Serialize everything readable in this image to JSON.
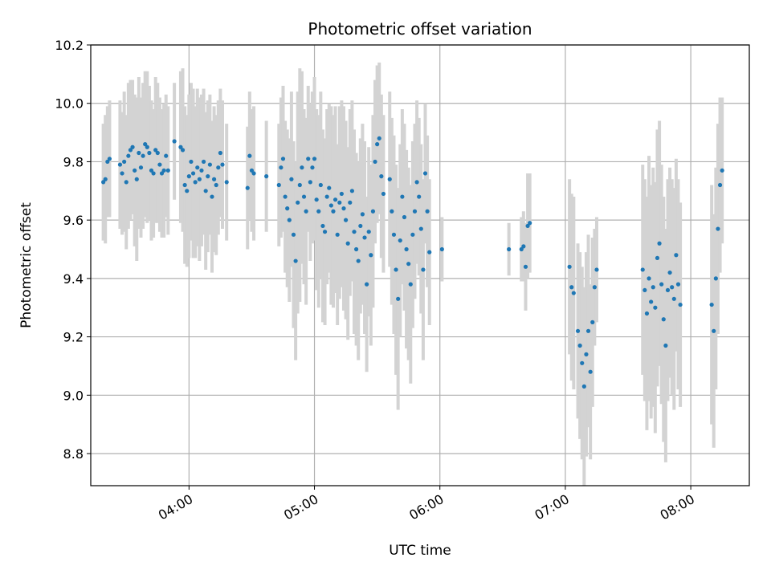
{
  "chart_data": {
    "type": "scatter",
    "title": "Photometric offset variation",
    "xlabel": "UTC time",
    "ylabel": "Photometric offset",
    "xlim": [
      "03:13",
      "08:28"
    ],
    "ylim": [
      8.69,
      10.2
    ],
    "x_ticks": [
      "04:00",
      "05:00",
      "06:00",
      "07:00",
      "08:00"
    ],
    "y_ticks": [
      "8.8",
      "9.0",
      "9.2",
      "9.4",
      "9.6",
      "9.8",
      "10.0",
      "10.2"
    ],
    "grid": true,
    "colors": {
      "points": "#1f77b4",
      "errorbars": "#d3d3d3",
      "grid": "#b0b0b0"
    },
    "series": [
      {
        "points": [
          [
            "03:19",
            9.73,
            0.2
          ],
          [
            "03:20",
            9.74,
            0.22
          ],
          [
            "03:21",
            9.8,
            0.19
          ],
          [
            "03:22",
            9.81,
            0.2
          ],
          [
            "03:27",
            9.79,
            0.22
          ],
          [
            "03:28",
            9.76,
            0.21
          ],
          [
            "03:29",
            9.8,
            0.24
          ],
          [
            "03:30",
            9.73,
            0.23
          ],
          [
            "03:31",
            9.82,
            0.25
          ],
          [
            "03:32",
            9.84,
            0.24
          ],
          [
            "03:33",
            9.85,
            0.23
          ],
          [
            "03:34",
            9.77,
            0.26
          ],
          [
            "03:35",
            9.74,
            0.28
          ],
          [
            "03:36",
            9.83,
            0.26
          ],
          [
            "03:37",
            9.78,
            0.24
          ],
          [
            "03:38",
            9.82,
            0.25
          ],
          [
            "03:39",
            9.86,
            0.25
          ],
          [
            "03:40",
            9.85,
            0.26
          ],
          [
            "03:41",
            9.83,
            0.23
          ],
          [
            "03:42",
            9.77,
            0.24
          ],
          [
            "03:43",
            9.76,
            0.22
          ],
          [
            "03:44",
            9.84,
            0.25
          ],
          [
            "03:45",
            9.83,
            0.24
          ],
          [
            "03:46",
            9.79,
            0.23
          ],
          [
            "03:47",
            9.76,
            0.22
          ],
          [
            "03:48",
            9.77,
            0.23
          ],
          [
            "03:49",
            9.82,
            0.21
          ],
          [
            "03:50",
            9.77,
            0.22
          ],
          [
            "03:53",
            9.87,
            0.2
          ],
          [
            "03:56",
            9.85,
            0.26
          ],
          [
            "03:57",
            9.84,
            0.28
          ],
          [
            "03:58",
            9.72,
            0.27
          ],
          [
            "03:59",
            9.7,
            0.26
          ],
          [
            "04:00",
            9.75,
            0.28
          ],
          [
            "04:01",
            9.8,
            0.27
          ],
          [
            "04:02",
            9.76,
            0.29
          ],
          [
            "04:03",
            9.73,
            0.26
          ],
          [
            "04:04",
            9.78,
            0.27
          ],
          [
            "04:05",
            9.74,
            0.28
          ],
          [
            "04:06",
            9.77,
            0.26
          ],
          [
            "04:07",
            9.8,
            0.25
          ],
          [
            "04:08",
            9.7,
            0.27
          ],
          [
            "04:09",
            9.75,
            0.26
          ],
          [
            "04:10",
            9.79,
            0.24
          ],
          [
            "04:11",
            9.68,
            0.26
          ],
          [
            "04:12",
            9.74,
            0.25
          ],
          [
            "04:13",
            9.72,
            0.24
          ],
          [
            "04:14",
            9.78,
            0.23
          ],
          [
            "04:15",
            9.83,
            0.22
          ],
          [
            "04:16",
            9.79,
            0.22
          ],
          [
            "04:18",
            9.73,
            0.2
          ],
          [
            "04:28",
            9.71,
            0.21
          ],
          [
            "04:29",
            9.82,
            0.22
          ],
          [
            "04:30",
            9.77,
            0.21
          ],
          [
            "04:31",
            9.76,
            0.23
          ],
          [
            "04:37",
            9.75,
            0.19
          ],
          [
            "04:43",
            9.72,
            0.21
          ],
          [
            "04:44",
            9.78,
            0.24
          ],
          [
            "04:45",
            9.81,
            0.25
          ],
          [
            "04:46",
            9.68,
            0.26
          ],
          [
            "04:47",
            9.64,
            0.27
          ],
          [
            "04:48",
            9.6,
            0.28
          ],
          [
            "04:49",
            9.74,
            0.3
          ],
          [
            "04:50",
            9.55,
            0.32
          ],
          [
            "04:51",
            9.46,
            0.34
          ],
          [
            "04:52",
            9.66,
            0.38
          ],
          [
            "04:53",
            9.72,
            0.4
          ],
          [
            "04:54",
            9.78,
            0.33
          ],
          [
            "04:55",
            9.68,
            0.3
          ],
          [
            "04:56",
            9.63,
            0.32
          ],
          [
            "04:57",
            9.81,
            0.25
          ],
          [
            "04:58",
            9.73,
            0.27
          ],
          [
            "04:59",
            9.78,
            0.26
          ],
          [
            "05:00",
            9.81,
            0.28
          ],
          [
            "05:01",
            9.67,
            0.31
          ],
          [
            "05:02",
            9.63,
            0.33
          ],
          [
            "05:03",
            9.72,
            0.32
          ],
          [
            "05:04",
            9.58,
            0.33
          ],
          [
            "05:05",
            9.56,
            0.32
          ],
          [
            "05:06",
            9.68,
            0.3
          ],
          [
            "05:07",
            9.71,
            0.29
          ],
          [
            "05:08",
            9.65,
            0.34
          ],
          [
            "05:09",
            9.63,
            0.33
          ],
          [
            "05:10",
            9.67,
            0.32
          ],
          [
            "05:11",
            9.55,
            0.31
          ],
          [
            "05:12",
            9.66,
            0.33
          ],
          [
            "05:13",
            9.69,
            0.32
          ],
          [
            "05:14",
            9.64,
            0.35
          ],
          [
            "05:15",
            9.6,
            0.34
          ],
          [
            "05:16",
            9.52,
            0.33
          ],
          [
            "05:17",
            9.66,
            0.32
          ],
          [
            "05:18",
            9.7,
            0.31
          ],
          [
            "05:19",
            9.56,
            0.35
          ],
          [
            "05:20",
            9.5,
            0.33
          ],
          [
            "05:21",
            9.46,
            0.34
          ],
          [
            "05:22",
            9.58,
            0.3
          ],
          [
            "05:23",
            9.62,
            0.31
          ],
          [
            "05:24",
            9.54,
            0.33
          ],
          [
            "05:25",
            9.38,
            0.3
          ],
          [
            "05:26",
            9.56,
            0.29
          ],
          [
            "05:27",
            9.48,
            0.31
          ],
          [
            "05:28",
            9.63,
            0.33
          ],
          [
            "05:29",
            9.8,
            0.28
          ],
          [
            "05:30",
            9.86,
            0.27
          ],
          [
            "05:31",
            9.88,
            0.26
          ],
          [
            "05:32",
            9.75,
            0.28
          ],
          [
            "05:33",
            9.69,
            0.27
          ],
          [
            "05:36",
            9.74,
            0.3
          ],
          [
            "05:37",
            9.63,
            0.32
          ],
          [
            "05:38",
            9.55,
            0.34
          ],
          [
            "05:39",
            9.43,
            0.36
          ],
          [
            "05:40",
            9.33,
            0.38
          ],
          [
            "05:41",
            9.53,
            0.33
          ],
          [
            "05:42",
            9.68,
            0.3
          ],
          [
            "05:43",
            9.61,
            0.32
          ],
          [
            "05:44",
            9.5,
            0.34
          ],
          [
            "05:45",
            9.45,
            0.33
          ],
          [
            "05:46",
            9.38,
            0.34
          ],
          [
            "05:47",
            9.55,
            0.32
          ],
          [
            "05:48",
            9.63,
            0.3
          ],
          [
            "05:49",
            9.73,
            0.28
          ],
          [
            "05:50",
            9.68,
            0.27
          ],
          [
            "05:51",
            9.57,
            0.29
          ],
          [
            "05:52",
            9.43,
            0.31
          ],
          [
            "05:53",
            9.76,
            0.24
          ],
          [
            "05:54",
            9.63,
            0.26
          ],
          [
            "05:55",
            9.49,
            0.25
          ],
          [
            "06:01",
            9.5,
            0.11
          ],
          [
            "06:33",
            9.5,
            0.09
          ],
          [
            "06:39",
            9.5,
            0.11
          ],
          [
            "06:40",
            9.51,
            0.12
          ],
          [
            "06:41",
            9.44,
            0.15
          ],
          [
            "06:42",
            9.58,
            0.18
          ],
          [
            "06:43",
            9.59,
            0.17
          ],
          [
            "07:02",
            9.44,
            0.3
          ],
          [
            "07:03",
            9.37,
            0.32
          ],
          [
            "07:04",
            9.35,
            0.33
          ],
          [
            "07:06",
            9.22,
            0.3
          ],
          [
            "07:07",
            9.17,
            0.32
          ],
          [
            "07:08",
            9.11,
            0.33
          ],
          [
            "07:09",
            9.03,
            0.34
          ],
          [
            "07:10",
            9.14,
            0.35
          ],
          [
            "07:11",
            9.22,
            0.33
          ],
          [
            "07:12",
            9.08,
            0.3
          ],
          [
            "07:13",
            9.25,
            0.29
          ],
          [
            "07:14",
            9.37,
            0.2
          ],
          [
            "07:15",
            9.43,
            0.18
          ],
          [
            "07:37",
            9.43,
            0.36
          ],
          [
            "07:38",
            9.36,
            0.38
          ],
          [
            "07:39",
            9.28,
            0.4
          ],
          [
            "07:40",
            9.4,
            0.42
          ],
          [
            "07:41",
            9.32,
            0.4
          ],
          [
            "07:42",
            9.37,
            0.41
          ],
          [
            "07:43",
            9.3,
            0.43
          ],
          [
            "07:44",
            9.47,
            0.44
          ],
          [
            "07:45",
            9.52,
            0.42
          ],
          [
            "07:46",
            9.38,
            0.41
          ],
          [
            "07:47",
            9.26,
            0.42
          ],
          [
            "07:48",
            9.17,
            0.4
          ],
          [
            "07:49",
            9.36,
            0.38
          ],
          [
            "07:50",
            9.42,
            0.36
          ],
          [
            "07:51",
            9.37,
            0.37
          ],
          [
            "07:52",
            9.33,
            0.38
          ],
          [
            "07:53",
            9.48,
            0.33
          ],
          [
            "07:54",
            9.38,
            0.36
          ],
          [
            "07:55",
            9.31,
            0.35
          ],
          [
            "08:10",
            9.31,
            0.41
          ],
          [
            "08:11",
            9.22,
            0.4
          ],
          [
            "08:12",
            9.4,
            0.38
          ],
          [
            "08:13",
            9.57,
            0.36
          ],
          [
            "08:14",
            9.72,
            0.3
          ],
          [
            "08:15",
            9.77,
            0.25
          ]
        ]
      }
    ]
  }
}
